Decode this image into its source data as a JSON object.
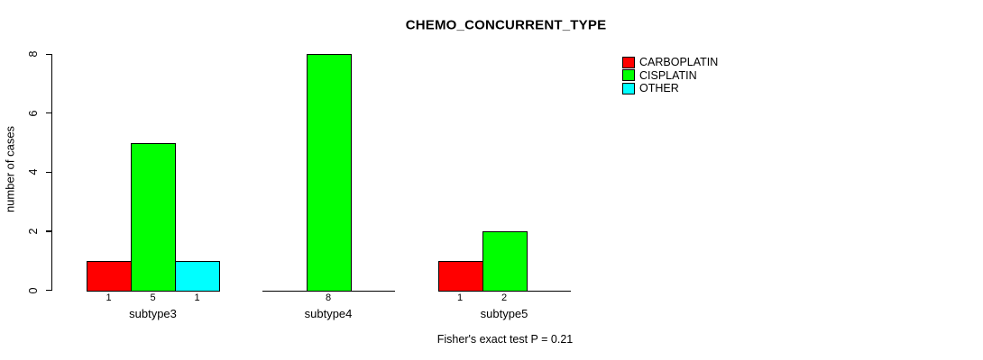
{
  "title": "CHEMO_CONCURRENT_TYPE",
  "ylabel": "number of cases",
  "footer": "Fisher's exact test P = 0.21",
  "legend": {
    "items": [
      {
        "label": "CARBOPLATIN",
        "color": "#ff0000"
      },
      {
        "label": "CISPLATIN",
        "color": "#00ff00"
      },
      {
        "label": "OTHER",
        "color": "#00ffff"
      }
    ]
  },
  "colors": {
    "carboplatin": "#ff0000",
    "cisplatin": "#00ff00",
    "other": "#00ffff",
    "axis": "#000000",
    "background": "#ffffff"
  },
  "chart_data": {
    "type": "bar",
    "grouped": true,
    "title": "CHEMO_CONCURRENT_TYPE",
    "xlabel": "",
    "ylabel": "number of cases",
    "categories": [
      "subtype3",
      "subtype4",
      "subtype5"
    ],
    "series": [
      {
        "name": "CARBOPLATIN",
        "color": "#ff0000",
        "values": [
          1,
          0,
          1
        ]
      },
      {
        "name": "CISPLATIN",
        "color": "#00ff00",
        "values": [
          5,
          8,
          2
        ]
      },
      {
        "name": "OTHER",
        "color": "#00ffff",
        "values": [
          1,
          0,
          0
        ]
      }
    ],
    "bar_value_labels": true,
    "yticks": [
      0,
      2,
      4,
      6,
      8
    ],
    "ylim": [
      0,
      8
    ],
    "grid": false,
    "legend_position": "top-right",
    "annotation": "Fisher's exact test P = 0.21"
  }
}
